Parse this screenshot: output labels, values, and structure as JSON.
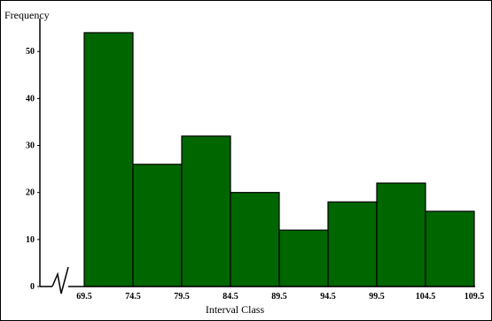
{
  "chart_data": {
    "type": "bar",
    "bar_color": "#006600",
    "bar_edge_color": "#000000",
    "ylabel": "Frequency",
    "xlabel": "Interval Class",
    "ylim": [
      0,
      57
    ],
    "y_ticks": [
      "0",
      "10",
      "20",
      "30",
      "40",
      "50"
    ],
    "x_ticks": [
      "69.5",
      "74.5",
      "79.5",
      "84.5",
      "89.5",
      "94.5",
      "99.5",
      "104.5",
      "109.5"
    ],
    "x_tick_values": [
      69.5,
      74.5,
      79.5,
      84.5,
      89.5,
      94.5,
      99.5,
      104.5,
      109.5
    ],
    "bins": [
      {
        "from": 69.5,
        "to": 74.5,
        "value": 54
      },
      {
        "from": 74.5,
        "to": 79.5,
        "value": 26
      },
      {
        "from": 79.5,
        "to": 84.5,
        "value": 32
      },
      {
        "from": 84.5,
        "to": 89.5,
        "value": 20
      },
      {
        "from": 89.5,
        "to": 94.5,
        "value": 12
      },
      {
        "from": 94.5,
        "to": 99.5,
        "value": 18
      },
      {
        "from": 99.5,
        "to": 104.5,
        "value": 22
      },
      {
        "from": 104.5,
        "to": 109.5,
        "value": 16
      }
    ],
    "axis_break": true,
    "grid": false
  }
}
